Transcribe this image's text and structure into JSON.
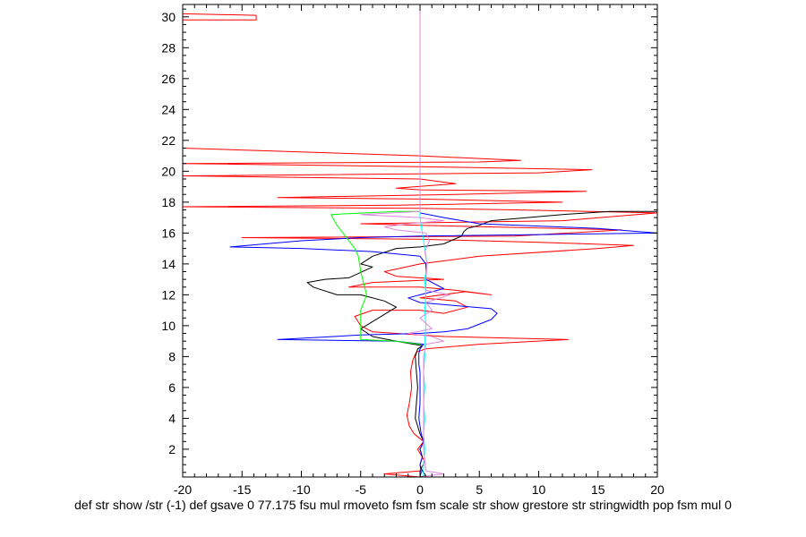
{
  "chart_data": {
    "type": "line",
    "title": "",
    "xlabel": "def str show /str (-1) def gsave 0 77.175 fsu mul rmoveto fsm fsm scale str show grestore str stringwidth pop fsm mul 0",
    "ylabel": "",
    "xlim": [
      -20,
      20
    ],
    "ylim": [
      0.2,
      30.8
    ],
    "x_ticks": [
      -20,
      -15,
      -10,
      -5,
      0,
      5,
      10,
      15,
      20
    ],
    "y_ticks": [
      2,
      4,
      6,
      8,
      10,
      12,
      14,
      16,
      18,
      20,
      22,
      24,
      26,
      28,
      30
    ],
    "grid": false,
    "legend": "none",
    "series": [
      {
        "color": "#ff0000",
        "points": [
          [
            0,
            0.2
          ],
          [
            -3,
            0.4
          ],
          [
            0,
            0.6
          ],
          [
            0.4,
            1.2
          ],
          [
            -0.2,
            2
          ],
          [
            0.3,
            2.5
          ],
          [
            -0.5,
            3
          ],
          [
            -0.9,
            3.5
          ],
          [
            -1.1,
            4.2
          ],
          [
            -0.9,
            5
          ],
          [
            -0.7,
            6
          ],
          [
            -0.8,
            7
          ],
          [
            -0.6,
            7.8
          ],
          [
            -0.3,
            8.3
          ],
          [
            0.5,
            8.5
          ],
          [
            5,
            8.8
          ],
          [
            12.5,
            9.1
          ],
          [
            2,
            9.3
          ],
          [
            -4,
            9.6
          ],
          [
            -5,
            10
          ],
          [
            -5.5,
            10.6
          ],
          [
            -4,
            11
          ],
          [
            0,
            11
          ],
          [
            2,
            10.8
          ],
          [
            4,
            11.2
          ],
          [
            3,
            11.6
          ],
          [
            0,
            11.8
          ],
          [
            3.8,
            12.2
          ],
          [
            6,
            12
          ],
          [
            3,
            12.3
          ],
          [
            0,
            12.5
          ],
          [
            -6,
            12.5
          ],
          [
            -4,
            12.8
          ],
          [
            2,
            13
          ],
          [
            -2,
            13.2
          ],
          [
            -3,
            13.5
          ],
          [
            0,
            14
          ],
          [
            5,
            14.5
          ],
          [
            15,
            15
          ],
          [
            18,
            15.2
          ],
          [
            10,
            15.4
          ],
          [
            0,
            15.6
          ],
          [
            -15,
            15.7
          ],
          [
            8,
            15.8
          ],
          [
            17,
            16.2
          ],
          [
            0,
            16.5
          ],
          [
            -5,
            16.6
          ],
          [
            12,
            16.8
          ],
          [
            20,
            17.3
          ],
          [
            8,
            17.5
          ],
          [
            0,
            17.6
          ],
          [
            -20,
            17.7
          ],
          [
            -2,
            17.8
          ],
          [
            12,
            18
          ],
          [
            0,
            18.2
          ],
          [
            -12,
            18.3
          ],
          [
            3,
            18.5
          ],
          [
            14,
            18.7
          ],
          [
            0,
            18.8
          ],
          [
            -2,
            18.9
          ],
          [
            3,
            19.2
          ],
          [
            0,
            19.5
          ],
          [
            -20,
            19.7
          ],
          [
            10,
            19.9
          ],
          [
            14.5,
            20.1
          ],
          [
            0,
            20.3
          ],
          [
            -20,
            20.5
          ],
          [
            5,
            20.6
          ],
          [
            8.5,
            20.7
          ],
          [
            0,
            21
          ],
          [
            -20,
            21.5
          ],
          [
            -20,
            29.8
          ],
          [
            -13.8,
            29.8
          ],
          [
            -13.8,
            30.1
          ],
          [
            -20,
            30.2
          ],
          [
            -20,
            30.8
          ],
          [
            -2,
            30.9
          ]
        ]
      },
      {
        "color": "#000000",
        "points": [
          [
            0,
            0.2
          ],
          [
            0.5,
            0.3
          ],
          [
            0.2,
            0.6
          ],
          [
            0,
            1
          ],
          [
            0.2,
            1.5
          ],
          [
            0,
            2
          ],
          [
            0.3,
            2.5
          ],
          [
            0,
            3
          ],
          [
            -0.4,
            4
          ],
          [
            -0.3,
            5
          ],
          [
            -0.2,
            6
          ],
          [
            -0.3,
            7
          ],
          [
            -0.4,
            8
          ],
          [
            -0.2,
            8.5
          ],
          [
            0.2,
            8.7
          ],
          [
            -2,
            9
          ],
          [
            -4,
            9.3
          ],
          [
            -5,
            9.8
          ],
          [
            -3.5,
            10.5
          ],
          [
            -2,
            11.2
          ],
          [
            -3,
            11.6
          ],
          [
            -5,
            12
          ],
          [
            -7,
            12
          ],
          [
            -9,
            12.5
          ],
          [
            -9.5,
            12.8
          ],
          [
            -8,
            13
          ],
          [
            -6,
            13.1
          ],
          [
            -4,
            13.8
          ],
          [
            -5,
            14
          ],
          [
            -4,
            14.5
          ],
          [
            -2,
            15
          ],
          [
            0,
            15.1
          ],
          [
            2,
            15.3
          ],
          [
            3.5,
            15.8
          ],
          [
            3.7,
            16.1
          ],
          [
            4,
            16.3
          ],
          [
            5,
            16.5
          ],
          [
            6,
            16.8
          ],
          [
            12,
            17.2
          ],
          [
            16,
            17.4
          ],
          [
            20,
            17.4
          ]
        ]
      },
      {
        "color": "#0000ff",
        "points": [
          [
            0,
            0.2
          ],
          [
            0.1,
            0.5
          ],
          [
            0,
            1
          ],
          [
            0.2,
            1.5
          ],
          [
            0,
            2
          ],
          [
            0.3,
            2.5
          ],
          [
            0.1,
            3
          ],
          [
            0,
            3.5
          ],
          [
            -0.1,
            4
          ],
          [
            0,
            5
          ],
          [
            0,
            6
          ],
          [
            0,
            6.5
          ],
          [
            0,
            7
          ],
          [
            -0.1,
            7.5
          ],
          [
            -0.1,
            8.2
          ],
          [
            0,
            8.5
          ],
          [
            0.3,
            8.8
          ],
          [
            -2,
            9
          ],
          [
            -12,
            9.1
          ],
          [
            -5,
            9.4
          ],
          [
            0,
            9.5
          ],
          [
            2,
            9.6
          ],
          [
            4,
            9.8
          ],
          [
            6,
            10.4
          ],
          [
            6.5,
            10.8
          ],
          [
            6,
            11.1
          ],
          [
            3,
            11.3
          ],
          [
            0,
            11.5
          ],
          [
            -1,
            11.8
          ],
          [
            0,
            12
          ],
          [
            2,
            12.4
          ],
          [
            0.5,
            13
          ],
          [
            0.5,
            13.5
          ],
          [
            0.5,
            14
          ],
          [
            0,
            14.5
          ],
          [
            -4,
            14.8
          ],
          [
            -10,
            15
          ],
          [
            -16,
            15.1
          ],
          [
            -10,
            15.5
          ],
          [
            -5,
            15.7
          ],
          [
            0,
            15.8
          ],
          [
            10,
            15.9
          ],
          [
            20,
            16
          ],
          [
            15,
            16.3
          ],
          [
            5,
            16.6
          ],
          [
            2,
            17
          ],
          [
            0,
            17.3
          ],
          [
            0,
            17.5
          ]
        ]
      },
      {
        "color": "#00ff00",
        "points": [
          [
            0,
            8.8
          ],
          [
            -2,
            9
          ],
          [
            -5,
            9.1
          ],
          [
            -5,
            11
          ],
          [
            -4.5,
            12
          ],
          [
            -5,
            13.5
          ],
          [
            -5.2,
            14.5
          ],
          [
            -5.5,
            15
          ],
          [
            -7,
            16.5
          ],
          [
            -7.5,
            17.2
          ],
          [
            -2,
            17.4
          ],
          [
            0,
            17.4
          ]
        ]
      },
      {
        "color": "#00ffff",
        "points": [
          [
            0.3,
            0.2
          ],
          [
            0.3,
            1
          ],
          [
            0.4,
            2
          ],
          [
            0.3,
            3
          ],
          [
            0.4,
            4
          ],
          [
            0.3,
            5
          ],
          [
            0.4,
            6
          ],
          [
            0.3,
            7
          ],
          [
            0.4,
            8
          ],
          [
            0.4,
            9
          ],
          [
            0.5,
            10
          ],
          [
            0.4,
            11
          ],
          [
            0.5,
            12
          ],
          [
            0.4,
            13
          ],
          [
            0.6,
            14
          ],
          [
            0.4,
            15
          ],
          [
            0.2,
            16
          ],
          [
            0,
            17
          ],
          [
            0,
            17.5
          ]
        ]
      },
      {
        "color": "#dd88dd",
        "points": [
          [
            0,
            0.2
          ],
          [
            2,
            0.4
          ],
          [
            0.5,
            0.6
          ],
          [
            0.3,
            2
          ],
          [
            0.3,
            4
          ],
          [
            0.3,
            6
          ],
          [
            0.3,
            8
          ],
          [
            0.5,
            8.8
          ],
          [
            2,
            9
          ],
          [
            1,
            9.3
          ],
          [
            -1,
            9.5
          ],
          [
            1,
            9.8
          ],
          [
            0,
            10.5
          ],
          [
            1,
            11
          ],
          [
            0.5,
            11.5
          ],
          [
            2.5,
            12
          ],
          [
            0.5,
            12.3
          ],
          [
            0.5,
            13
          ],
          [
            0.6,
            14
          ],
          [
            0.4,
            14.8
          ],
          [
            0.8,
            15.5
          ],
          [
            0.5,
            16
          ],
          [
            -2,
            16.2
          ],
          [
            -3,
            16.4
          ],
          [
            -1,
            16.6
          ],
          [
            2,
            16.8
          ],
          [
            0,
            17
          ],
          [
            -5,
            17.2
          ],
          [
            0,
            17.4
          ],
          [
            0,
            30.8
          ]
        ]
      }
    ]
  }
}
